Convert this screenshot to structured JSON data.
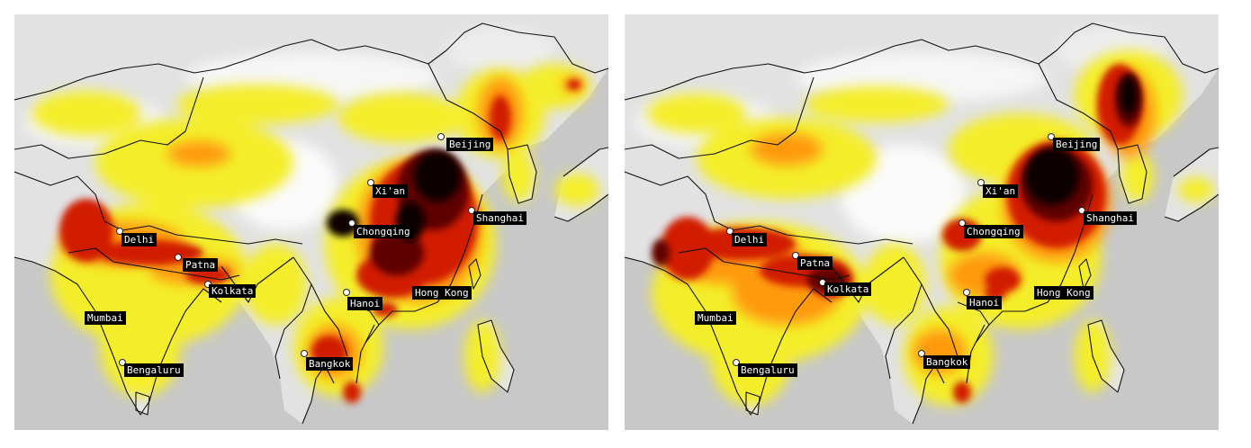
{
  "colors": {
    "ocean": "#c8c8c8",
    "land_low": "#e4e4e4",
    "yellow": "#f4ee2a",
    "orange": "#ff9a0f",
    "red": "#d11a06",
    "dark_red": "#5e0000",
    "black": "#0a0000",
    "border": "#111111",
    "label_bg": "#000000",
    "label_text": "#ffffff"
  },
  "maps": [
    {
      "id": "left",
      "cities": [
        {
          "name": "Beijing"
        },
        {
          "name": "Xi'an"
        },
        {
          "name": "Shanghai"
        },
        {
          "name": "Chongqing"
        },
        {
          "name": "Delhi"
        },
        {
          "name": "Patna"
        },
        {
          "name": "Kolkata"
        },
        {
          "name": "Hanoi"
        },
        {
          "name": "Hong Kong"
        },
        {
          "name": "Mumbai"
        },
        {
          "name": "Bangkok"
        },
        {
          "name": "Bengaluru"
        }
      ]
    },
    {
      "id": "right",
      "cities": [
        {
          "name": "Beijing"
        },
        {
          "name": "Xi'an"
        },
        {
          "name": "Shanghai"
        },
        {
          "name": "Chongqing"
        },
        {
          "name": "Delhi"
        },
        {
          "name": "Patna"
        },
        {
          "name": "Kolkata"
        },
        {
          "name": "Hanoi"
        },
        {
          "name": "Hong Kong"
        },
        {
          "name": "Mumbai"
        },
        {
          "name": "Bangkok"
        },
        {
          "name": "Bengaluru"
        }
      ]
    }
  ]
}
